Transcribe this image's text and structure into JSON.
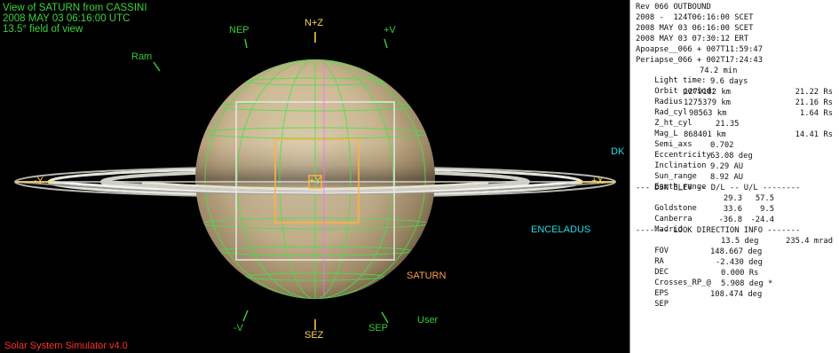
{
  "header": {
    "line1": "View of SATURN from CASSINI",
    "line2": "2008 MAY 03 06:16:00 UTC",
    "line3": "13.5° field of view"
  },
  "footer": {
    "app_name": "Solar System Simulator v4.0"
  },
  "viewport_labels": {
    "nep": "NEP",
    "nz": "N+Z",
    "plus_v": "+V",
    "ram": "Ram",
    "dk": "DK",
    "minus_y": "-Y",
    "plus_y": "+Y",
    "plus_x": "+X",
    "enceladus": "ENCELADUS",
    "saturn": "SATURN",
    "minus_v": "-V",
    "sez": "SEZ",
    "sep": "SEP",
    "user": "User"
  },
  "colors": {
    "green": "#33cc33",
    "yellow": "#ffd84a",
    "cyan": "#22dddd",
    "orange": "#ff9f40",
    "red": "#ff3030"
  },
  "info": {
    "rev": "Rev 066 OUTBOUND",
    "scet1": "2008 -  124T06:16:00 SCET",
    "scet2": "2008 MAY 03 06:16:00 SCET",
    "ert": "2008 MAY 03 07:30:12 ERT",
    "apoapse": "Apoapse__066 + 007T11:59:47",
    "periapse": "Periapse_066 + 002T17:24:43",
    "light_time": {
      "label": "Light time:",
      "value": "74.2 min"
    },
    "orbit_period": {
      "label": "Orbit period:",
      "value": "9.6 days"
    },
    "radius": {
      "label": "Radius",
      "value": "1279182 km",
      "rs": "21.22 Rs"
    },
    "rad_cyl": {
      "label": "Rad_cyl",
      "value": "1275379 km",
      "rs": "21.16 Rs"
    },
    "z_ht_cyl": {
      "label": "Z_ht_cyl",
      "value": "98563 km",
      "rs": "1.64 Rs"
    },
    "mag_l": {
      "label": "Mag_L",
      "value": "21.35"
    },
    "semi_axs": {
      "label": "Semi_axs",
      "value": "868401 km",
      "rs": "14.41 Rs"
    },
    "eccentricity": {
      "label": "Eccentricity",
      "value": "0.702"
    },
    "inclination": {
      "label": "Inclination",
      "value": "63.08 deg"
    },
    "sun_range": {
      "label": "Sun_range",
      "value": "9.29 AU"
    },
    "earth_range": {
      "label": "Earth_range",
      "value": "8.92 AU"
    },
    "dsn_header": "--- DSN ELEV -- D/L -- U/L --------",
    "goldstone": {
      "label": "Goldstone",
      "elev": "29.3",
      "dl": "57.5"
    },
    "canberra": {
      "label": "Canberra",
      "elev": "33.6",
      "dl": "9.5"
    },
    "madrid": {
      "label": "Madrid",
      "elev": "-36.8",
      "dl": "-24.4"
    },
    "look_header": "------- LOOK DIRECTION INFO -------",
    "fov": {
      "label": "FOV",
      "value": "13.5 deg",
      "extra": "235.4 mrad"
    },
    "ra": {
      "label": "RA",
      "value": "148.667 deg"
    },
    "dec": {
      "label": "DEC",
      "value": "-2.430 deg"
    },
    "crosses_rp": {
      "label": "Crosses_RP_@",
      "value": "0.000 Rs"
    },
    "eps": {
      "label": "EPS",
      "value": "5.908 deg *"
    },
    "sep": {
      "label": "SEP",
      "value": "108.474 deg"
    }
  }
}
